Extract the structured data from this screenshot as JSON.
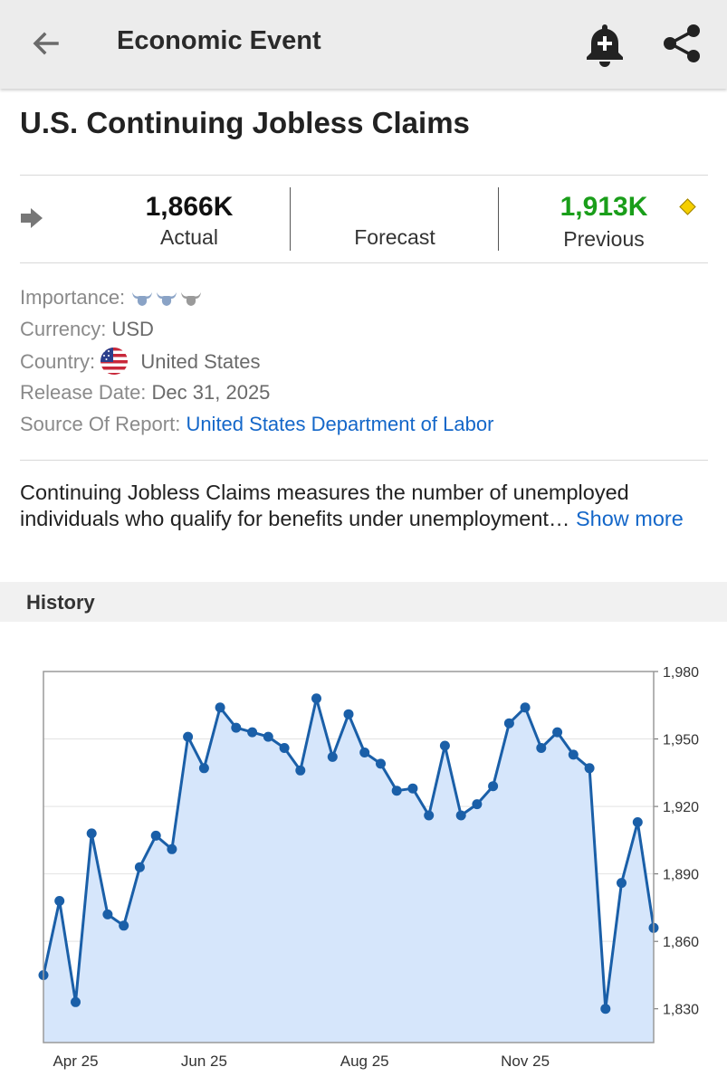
{
  "appbar": {
    "title": "Economic Event",
    "back_icon": "arrow-back-icon",
    "alert_icon": "bell-plus-icon",
    "share_icon": "share-icon"
  },
  "event": {
    "title": "U.S. Continuing Jobless Claims"
  },
  "stats": {
    "trend_icon": "arrow-right-icon",
    "actual_value": "1,866K",
    "actual_label": "Actual",
    "forecast_value": "",
    "forecast_label": "Forecast",
    "previous_value": "1,913K",
    "previous_label": "Previous",
    "previous_color": "#1a9e1a",
    "revised_icon": "diamond-icon"
  },
  "details": {
    "importance_label": "Importance:",
    "importance_level": 3,
    "currency_label": "Currency:",
    "currency_value": "USD",
    "country_label": "Country:",
    "country_value": "United States",
    "release_label": "Release Date:",
    "release_value": "Dec 31, 2025",
    "source_label": "Source Of Report:",
    "source_value": "United States Department of Labor"
  },
  "description": {
    "text": "Continuing Jobless Claims measures the number of unemployed individuals who qualify for benefits under unemployment…",
    "more_label": "Show more"
  },
  "history": {
    "title": "History"
  },
  "colors": {
    "link": "#1467c9",
    "line": "#1a5fa8",
    "area": "#d6e6fb"
  },
  "chart_data": {
    "type": "area",
    "x_ticks": [
      "Apr 25",
      "Jun 25",
      "Aug 25",
      "Nov 25"
    ],
    "y_ticks": [
      "1,980",
      "1,950",
      "1,920",
      "1,890",
      "1,860",
      "1,830"
    ],
    "ylim": [
      1815,
      1980
    ],
    "y_axis_position": "right",
    "grid": true,
    "values": [
      1845,
      1878,
      1833,
      1908,
      1872,
      1867,
      1893,
      1907,
      1901,
      1951,
      1937,
      1964,
      1955,
      1953,
      1951,
      1946,
      1936,
      1968,
      1942,
      1961,
      1944,
      1939,
      1927,
      1928,
      1916,
      1947,
      1916,
      1921,
      1929,
      1957,
      1964,
      1946,
      1953,
      1943,
      1937,
      1830,
      1886,
      1913,
      1866
    ]
  }
}
